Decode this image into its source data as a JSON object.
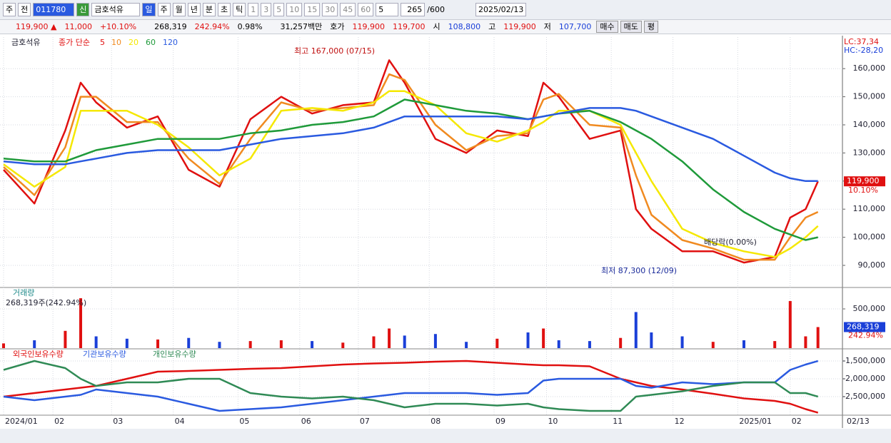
{
  "toolbar": {
    "items": [
      "주",
      "전",
      "011780",
      "신",
      "금호석유",
      "일",
      "주",
      "월",
      "년",
      "분",
      "초",
      "틱",
      "1",
      "3",
      "5",
      "10",
      "15",
      "30",
      "45",
      "60",
      "5",
      "265",
      "/600",
      "2025/02/13"
    ]
  },
  "info": {
    "items": [
      "119,900 ▲",
      "11,000",
      "+10.10%",
      "268,319",
      "242.94%",
      "0.98%",
      "31,257백만",
      "호가",
      "119,900",
      "119,700",
      "시",
      "108,800",
      "고",
      "119,900",
      "저",
      "107,700",
      "매수",
      "매도",
      "평"
    ]
  },
  "chart_data": [
    {
      "type": "line",
      "title": "금호석유",
      "subtitle": "종가 단순",
      "x": [
        0,
        10,
        20,
        25,
        30,
        40,
        50,
        60,
        70,
        80,
        90,
        100,
        110,
        120,
        125,
        130,
        140,
        150,
        160,
        170,
        175,
        180,
        190,
        200,
        205,
        210,
        220,
        230,
        240,
        250,
        255,
        260,
        264
      ],
      "xlim": [
        0,
        265
      ],
      "xticks": [
        {
          "value": 0,
          "label": "2024/01"
        },
        {
          "value": 16,
          "label": "02"
        },
        {
          "value": 35,
          "label": "03"
        },
        {
          "value": 55,
          "label": "04"
        },
        {
          "value": 76,
          "label": "05"
        },
        {
          "value": 96,
          "label": "06"
        },
        {
          "value": 115,
          "label": "07"
        },
        {
          "value": 138,
          "label": "08"
        },
        {
          "value": 159,
          "label": "09"
        },
        {
          "value": 176,
          "label": "10"
        },
        {
          "value": 197,
          "label": "11"
        },
        {
          "value": 217,
          "label": "12"
        },
        {
          "value": 238,
          "label": "2025/01"
        },
        {
          "value": 255,
          "label": "02"
        }
      ],
      "last_date": "02/13",
      "ylim": [
        82130,
        171220
      ],
      "yticks": [
        {
          "value": 90000,
          "label": "90,000"
        },
        {
          "value": 100000,
          "label": "100,000"
        },
        {
          "value": 110000,
          "label": "110,000"
        },
        {
          "value": 120000,
          "label": "120,000"
        },
        {
          "value": 130000,
          "label": "130,000"
        },
        {
          "value": 140000,
          "label": "140,000"
        },
        {
          "value": 150000,
          "label": "150,000"
        },
        {
          "value": 160000,
          "label": "160,000"
        }
      ],
      "grid": true,
      "series": [
        {
          "name": "5",
          "color": "#e01010",
          "values": [
            124000,
            112000,
            138000,
            155000,
            148000,
            139000,
            143000,
            124000,
            118000,
            142000,
            150000,
            144000,
            147000,
            148000,
            163000,
            155000,
            135000,
            130000,
            138000,
            136000,
            155000,
            150000,
            135000,
            138000,
            110000,
            103000,
            95000,
            95000,
            91000,
            93000,
            107000,
            110000,
            119900
          ]
        },
        {
          "name": "10",
          "color": "#f08a20",
          "values": [
            125000,
            115000,
            132000,
            150000,
            150000,
            141000,
            141000,
            128000,
            119000,
            135000,
            148000,
            145000,
            146000,
            147000,
            158000,
            156000,
            140000,
            131000,
            136000,
            137000,
            149000,
            151000,
            140000,
            139000,
            122000,
            108000,
            99000,
            96000,
            92000,
            92000,
            100000,
            107000,
            109000
          ]
        },
        {
          "name": "20",
          "color": "#f5e800",
          "values": [
            126000,
            118000,
            125000,
            145000,
            145000,
            145000,
            140000,
            132000,
            122000,
            128000,
            145000,
            146000,
            145000,
            148000,
            152000,
            152000,
            147000,
            137000,
            134000,
            138000,
            141000,
            145000,
            145000,
            140000,
            130000,
            120000,
            103000,
            98000,
            95000,
            93000,
            96000,
            100000,
            104000
          ]
        },
        {
          "name": "60",
          "color": "#1f9a3a",
          "values": [
            128000,
            127000,
            127000,
            129000,
            131000,
            133000,
            135000,
            135000,
            135000,
            137000,
            138000,
            140000,
            141000,
            143000,
            146000,
            149000,
            147000,
            145000,
            144000,
            142000,
            143000,
            144000,
            145000,
            141000,
            138000,
            135000,
            127000,
            117000,
            109000,
            103000,
            101000,
            99000,
            100000
          ]
        },
        {
          "name": "120",
          "color": "#2a5ae0",
          "values": [
            127000,
            126000,
            126000,
            127000,
            128000,
            130000,
            131000,
            131000,
            131000,
            133000,
            135000,
            136000,
            137000,
            139000,
            141000,
            143000,
            143000,
            143000,
            143000,
            142000,
            143000,
            144000,
            146000,
            146000,
            145000,
            143000,
            139000,
            135000,
            129000,
            123000,
            121000,
            120000,
            120000
          ]
        }
      ],
      "annotations": [
        "최고 167,000 (07/15)",
        "최저 87,300 (12/09)",
        "배당락(0.00%)"
      ],
      "price_tag": "119,900",
      "change_tag": "10.10%",
      "lc": "LC:37,34",
      "hc": "HC:-28,20"
    },
    {
      "type": "bar",
      "title": "거래량",
      "subtitle": "268,319주(242.94%)",
      "values": [
        60000,
        100000,
        220000,
        636000,
        150000,
        120000,
        110000,
        130000,
        80000,
        90000,
        100000,
        90000,
        70000,
        150000,
        250000,
        160000,
        180000,
        80000,
        120000,
        200000,
        250000,
        100000,
        90000,
        130000,
        460000,
        200000,
        150000,
        80000,
        100000,
        90000,
        600000,
        150000,
        268319
      ],
      "ylim": [
        0,
        773000
      ],
      "yticks": [
        {
          "value": 500000,
          "label": "500,000"
        }
      ],
      "volume_tag": "268,319",
      "ratio_tag": "242.94%"
    },
    {
      "type": "line",
      "ylim": [
        -3020000,
        -1180000
      ],
      "yticks": [
        {
          "value": -1500000,
          "label": "-1,500,000"
        },
        {
          "value": -2000000,
          "label": "-2,000,000"
        },
        {
          "value": -2500000,
          "label": "-2,500,000"
        }
      ],
      "series": [
        {
          "name": "외국인보유수량",
          "color": "#e01010",
          "values": [
            -2500000,
            -2400000,
            -2300000,
            -2250000,
            -2200000,
            -2000000,
            -1800000,
            -1780000,
            -1750000,
            -1720000,
            -1700000,
            -1650000,
            -1600000,
            -1570000,
            -1560000,
            -1550000,
            -1520000,
            -1500000,
            -1550000,
            -1600000,
            -1620000,
            -1620000,
            -1650000,
            -2000000,
            -2100000,
            -2200000,
            -2300000,
            -2420000,
            -2550000,
            -2620000,
            -2700000,
            -2850000,
            -2950000
          ]
        },
        {
          "name": "기관보유수량",
          "color": "#2a5ae0",
          "values": [
            -2500000,
            -2600000,
            -2500000,
            -2450000,
            -2300000,
            -2400000,
            -2500000,
            -2700000,
            -2900000,
            -2850000,
            -2800000,
            -2700000,
            -2600000,
            -2500000,
            -2450000,
            -2400000,
            -2400000,
            -2400000,
            -2450000,
            -2400000,
            -2050000,
            -2000000,
            -2000000,
            -2000000,
            -2200000,
            -2250000,
            -2100000,
            -2150000,
            -2100000,
            -2100000,
            -1750000,
            -1600000,
            -1500000
          ]
        },
        {
          "name": "개인보유수량",
          "color": "#2f8a55",
          "values": [
            -1750000,
            -1500000,
            -1700000,
            -2000000,
            -2200000,
            -2100000,
            -2100000,
            -2000000,
            -2000000,
            -2400000,
            -2500000,
            -2550000,
            -2500000,
            -2600000,
            -2700000,
            -2800000,
            -2700000,
            -2700000,
            -2750000,
            -2700000,
            -2800000,
            -2850000,
            -2900000,
            -2900000,
            -2500000,
            -2450000,
            -2350000,
            -2200000,
            -2100000,
            -2100000,
            -2400000,
            -2400000,
            -2500000
          ]
        }
      ]
    }
  ]
}
